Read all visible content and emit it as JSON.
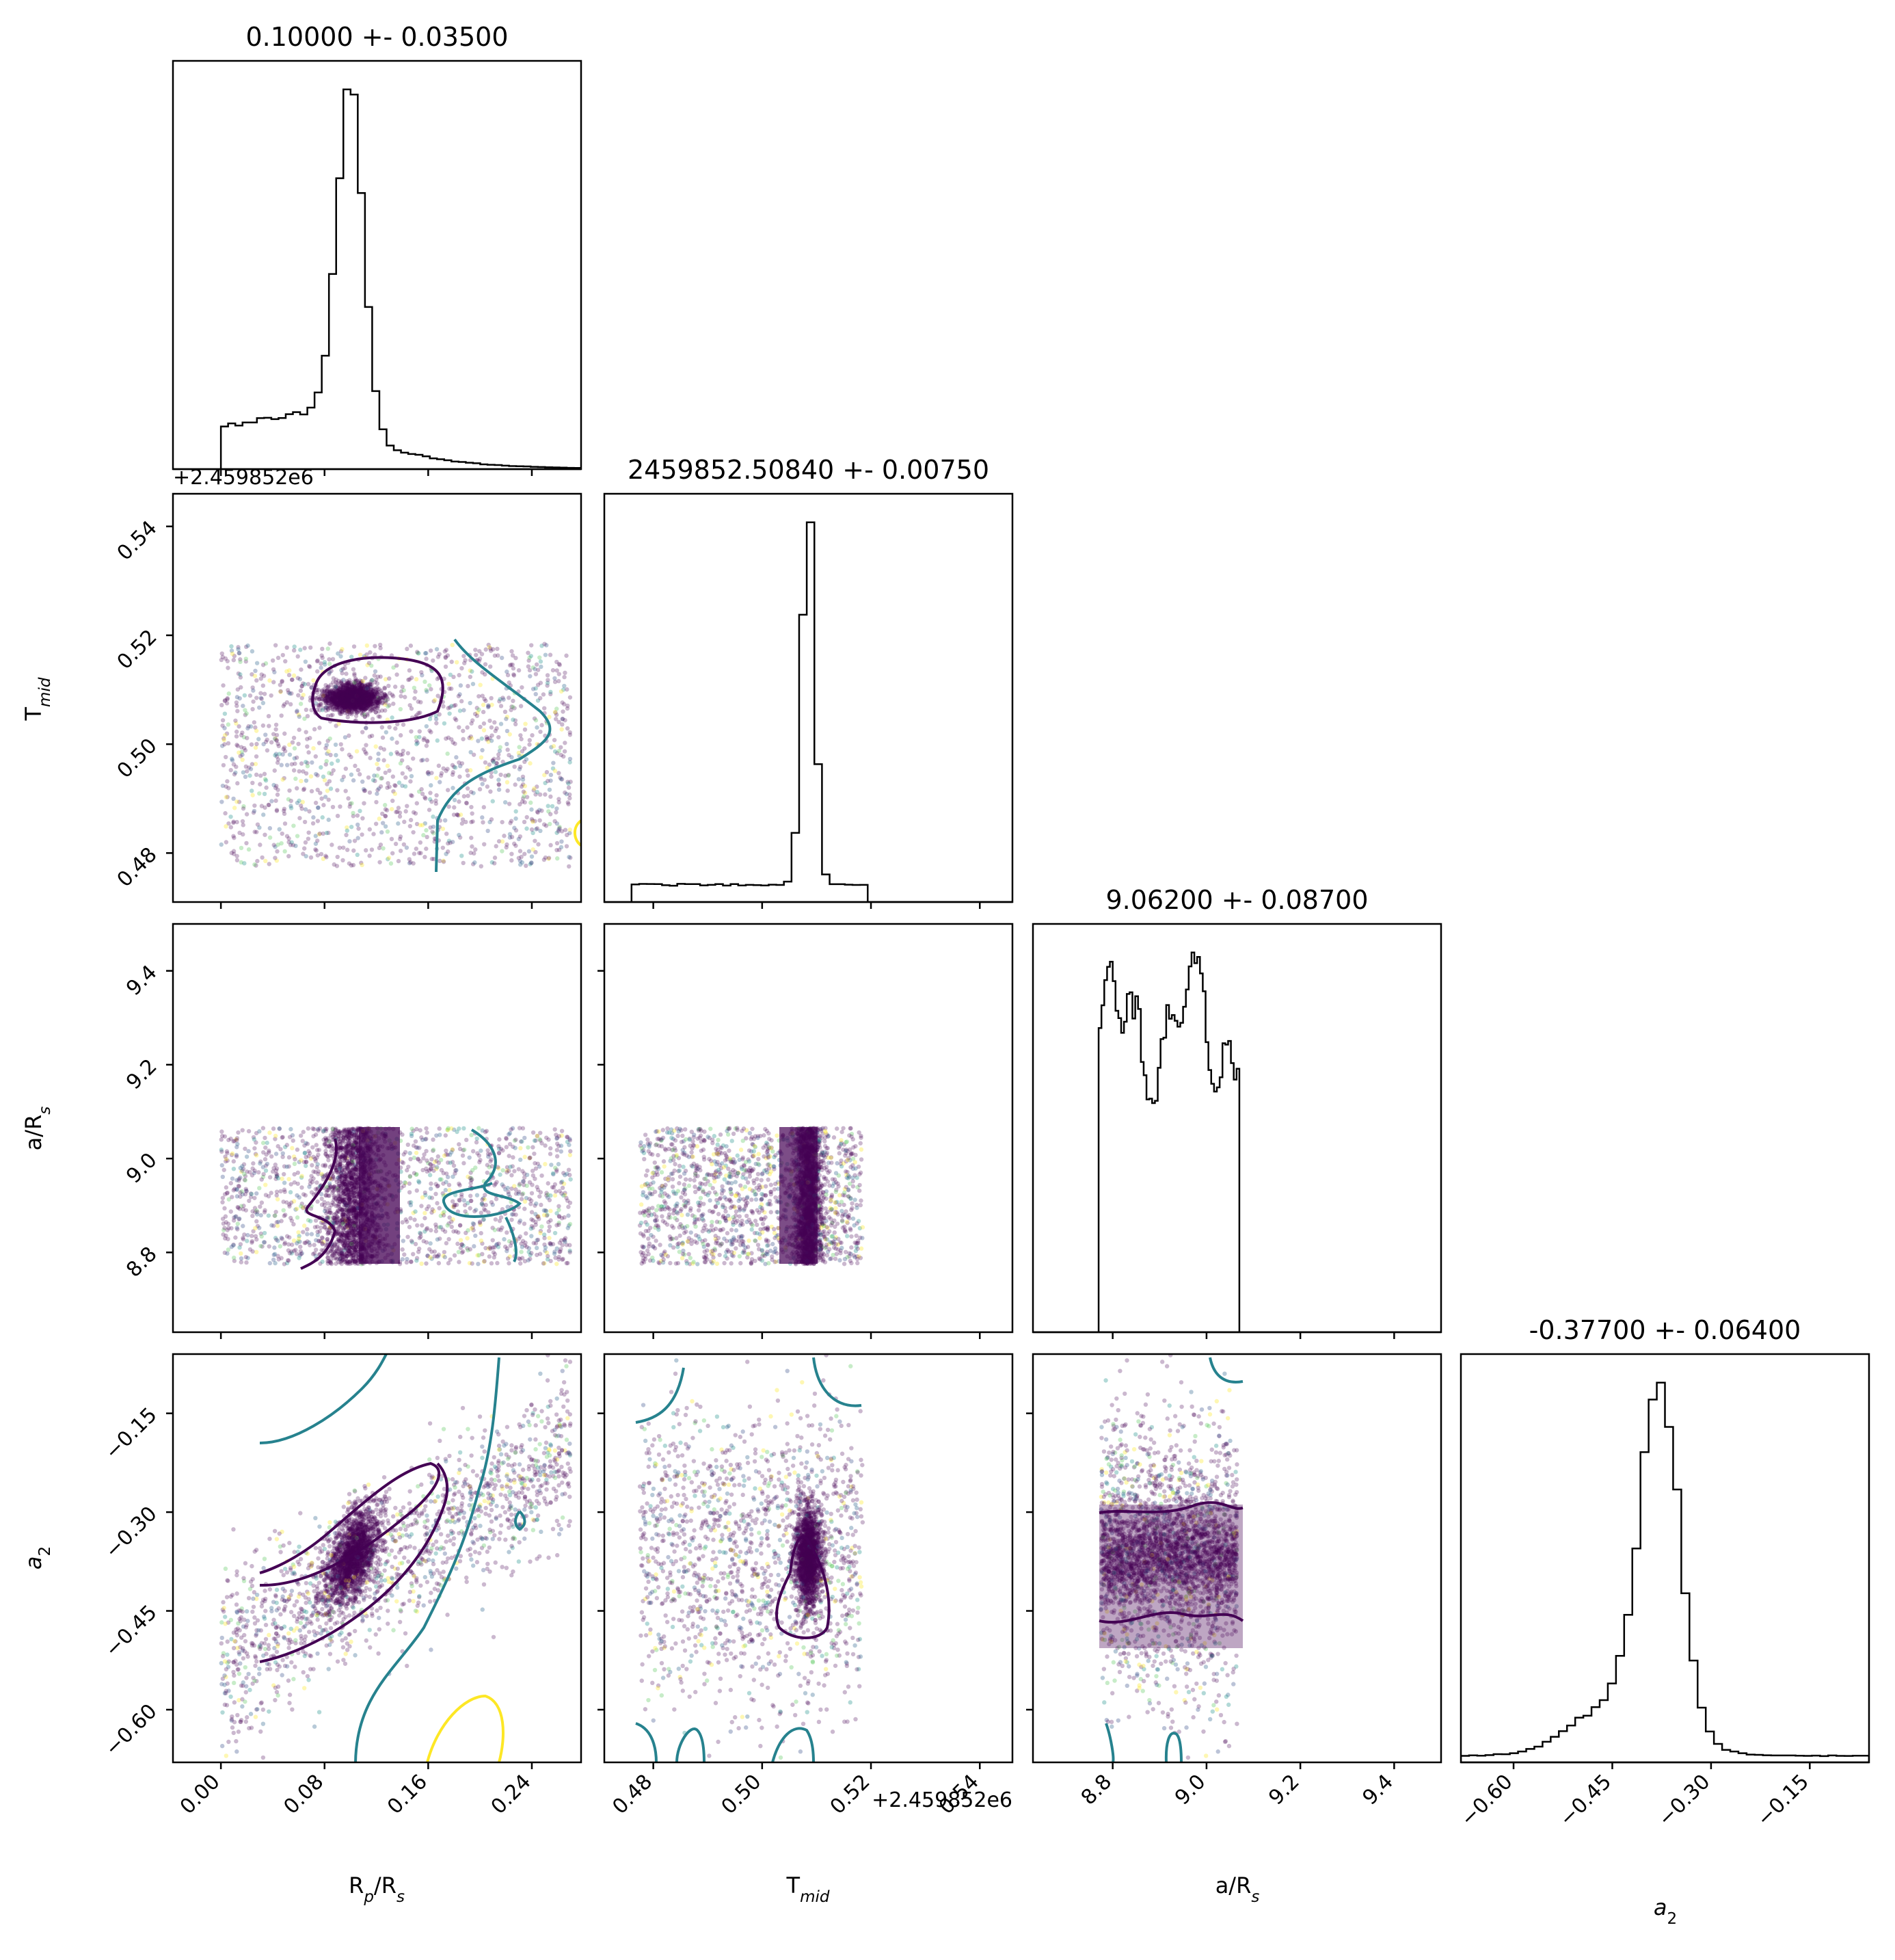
{
  "figure": {
    "type": "corner-plot",
    "offset_label": "+2.459852e6"
  },
  "parameters": [
    {
      "key": "rp",
      "label_base": "R",
      "label_sub": "p",
      "label_tail": "/R",
      "label_sub2": "s",
      "title": "0.10000 +- 0.03500",
      "range": [
        -0.037,
        0.278
      ],
      "ticks": [
        0.0,
        0.08,
        0.16,
        0.24
      ],
      "tick_labels": [
        "0.00",
        "0.08",
        "0.16",
        "0.24"
      ]
    },
    {
      "key": "tmid",
      "label_base": "T",
      "label_sub": "mid",
      "label_tail": "",
      "label_sub2": "",
      "title": "2459852.50840 +- 0.00750",
      "range": [
        0.471,
        0.546
      ],
      "ticks": [
        0.48,
        0.5,
        0.52,
        0.54
      ],
      "tick_labels": [
        "0.48",
        "0.50",
        "0.52",
        "0.54"
      ]
    },
    {
      "key": "ars",
      "label_base": "a/R",
      "label_sub": "s",
      "label_tail": "",
      "label_sub2": "",
      "title": "9.06200 +- 0.08700",
      "range": [
        8.63,
        9.5
      ],
      "ticks": [
        8.8,
        9.0,
        9.2,
        9.4
      ],
      "tick_labels": [
        "8.8",
        "9.0",
        "9.2",
        "9.4"
      ]
    },
    {
      "key": "a2",
      "label_base": "a",
      "label_sub": "2",
      "label_tail": "",
      "label_sub2": "",
      "italic": true,
      "title": "-0.37700 +- 0.06400",
      "range": [
        -0.68,
        -0.06
      ],
      "ticks": [
        -0.6,
        -0.45,
        -0.3,
        -0.15
      ],
      "tick_labels": [
        "−0.60",
        "−0.45",
        "−0.30",
        "−0.15"
      ]
    }
  ],
  "chart_data": {
    "type": "corner",
    "colors": {
      "line": "#000000",
      "points_dark": "#440154",
      "contour_dark": "#440154",
      "contour_mid": "#26828e",
      "contour_light": "#fde725"
    },
    "histograms": [
      {
        "param": "rp",
        "shape": "peak-with-shoulder",
        "peak": 0.1,
        "width": 0.01,
        "support": [
          0.0,
          0.278
        ]
      },
      {
        "param": "tmid",
        "shape": "peak-with-flat-tail",
        "peak": 0.5085,
        "width": 0.0012,
        "support": [
          0.476,
          0.546
        ]
      },
      {
        "param": "ars",
        "shape": "flat-top",
        "support": [
          8.77,
          9.07
        ]
      },
      {
        "param": "a2",
        "shape": "peak",
        "peak": -0.377,
        "width": 0.03,
        "support": [
          -0.68,
          -0.06
        ]
      }
    ],
    "scatter_panels": [
      {
        "x": "rp",
        "y": "tmid"
      },
      {
        "x": "rp",
        "y": "ars"
      },
      {
        "x": "tmid",
        "y": "ars"
      },
      {
        "x": "rp",
        "y": "a2"
      },
      {
        "x": "tmid",
        "y": "a2"
      },
      {
        "x": "ars",
        "y": "a2"
      }
    ],
    "grid": false
  }
}
